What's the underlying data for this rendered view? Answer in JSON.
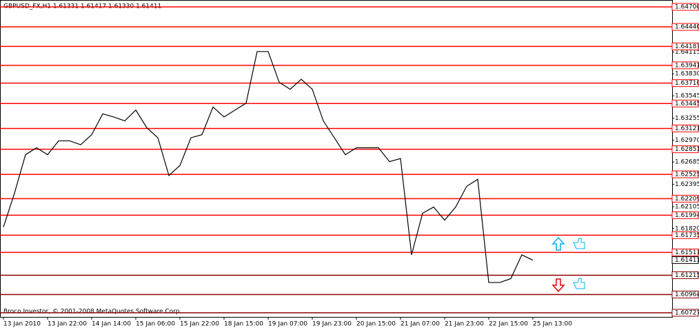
{
  "chart_data": {
    "type": "line",
    "title": "GBPUSD_FX,H1  1.61331 1.61417 1.61330 1.61411",
    "footer": "Broco Investor, © 2001-2008 MetaQuotes Software Corp.",
    "categories": [
      "13 Jan 2010",
      null,
      null,
      null,
      "13 Jan 22:00",
      null,
      null,
      null,
      "14 Jan 14:00",
      null,
      null,
      null,
      "15 Jan 06:00",
      null,
      null,
      null,
      "15 Jan 22:00",
      null,
      null,
      null,
      "18 Jan 15:00",
      null,
      null,
      null,
      "19 Jan 07:00",
      null,
      null,
      null,
      "19 Jan 23:00",
      null,
      null,
      null,
      "20 Jan 15:00",
      null,
      null,
      null,
      "21 Jan 07:00",
      null,
      null,
      null,
      "21 Jan 23:00",
      null,
      null,
      null,
      "22 Jan 15:00",
      null,
      null,
      null,
      "25 Jan 13:00"
    ],
    "series": [
      {
        "color": "#000000",
        "values": [
          1.6184,
          1.6228,
          1.6278,
          1.6287,
          1.6278,
          1.6296,
          1.6296,
          1.6291,
          1.6304,
          1.6331,
          1.6327,
          1.6322,
          1.6336,
          1.6313,
          1.63,
          1.6251,
          1.6264,
          1.63,
          1.6304,
          1.634,
          1.6327,
          1.6336,
          1.6345,
          1.6412,
          1.6412,
          1.6372,
          1.6363,
          1.6376,
          1.6363,
          1.6322,
          1.63,
          1.6278,
          1.6287,
          1.6287,
          1.6287,
          1.6269,
          1.6273,
          1.6148,
          1.6202,
          1.621,
          1.6193,
          1.621,
          1.6237,
          1.6246,
          1.6112,
          1.6112,
          1.6117,
          1.6148,
          1.6141
        ]
      }
    ],
    "ylim": [
      1.60727,
      1.647
    ],
    "yticks": [
      {
        "value": 1.64115,
        "label": "1.64115"
      },
      {
        "value": 1.6383,
        "label": "1.63830"
      },
      {
        "value": 1.63545,
        "label": "1.63545"
      },
      {
        "value": 1.63255,
        "label": "1.63255"
      },
      {
        "value": 1.6297,
        "label": "1.62970"
      },
      {
        "value": 1.62685,
        "label": "1.62685"
      },
      {
        "value": 1.62395,
        "label": "1.62395"
      },
      {
        "value": 1.62105,
        "label": "1.62105"
      },
      {
        "value": 1.6182,
        "label": "1.61820"
      }
    ],
    "levels": [
      {
        "value": 1.647,
        "label": "1.64700",
        "color": "#ff0000"
      },
      {
        "value": 1.6444,
        "label": "1.64440",
        "color": "#ff0000"
      },
      {
        "value": 1.64187,
        "label": "1.64187",
        "color": "#ff0000"
      },
      {
        "value": 1.63941,
        "label": "1.63941",
        "color": "#ff0000"
      },
      {
        "value": 1.6371,
        "label": "1.63710",
        "color": "#ff0000"
      },
      {
        "value": 1.63445,
        "label": "1.63445",
        "color": "#ff0000"
      },
      {
        "value": 1.63121,
        "label": "1.63121",
        "color": "#ff0000"
      },
      {
        "value": 1.62851,
        "label": "1.62851",
        "color": "#ff0000"
      },
      {
        "value": 1.62525,
        "label": "1.62525",
        "color": "#ff0000"
      },
      {
        "value": 1.62209,
        "label": "1.62209",
        "color": "#ff0000"
      },
      {
        "value": 1.61994,
        "label": "1.61994",
        "color": "#ff0000"
      },
      {
        "value": 1.61735,
        "label": "1.61735",
        "color": "#ff0000"
      },
      {
        "value": 1.61511,
        "label": "1.61511",
        "color": "#ff0000"
      },
      {
        "value": 1.61215,
        "label": "1.61215",
        "color": "#8b0000"
      },
      {
        "value": 1.60964,
        "label": "1.60964",
        "color": "#8b0000"
      },
      {
        "value": 1.60727,
        "label": "1.60727",
        "color": "#8b0000"
      }
    ],
    "last_price": {
      "value": 1.61411,
      "label": "1.61411"
    }
  }
}
